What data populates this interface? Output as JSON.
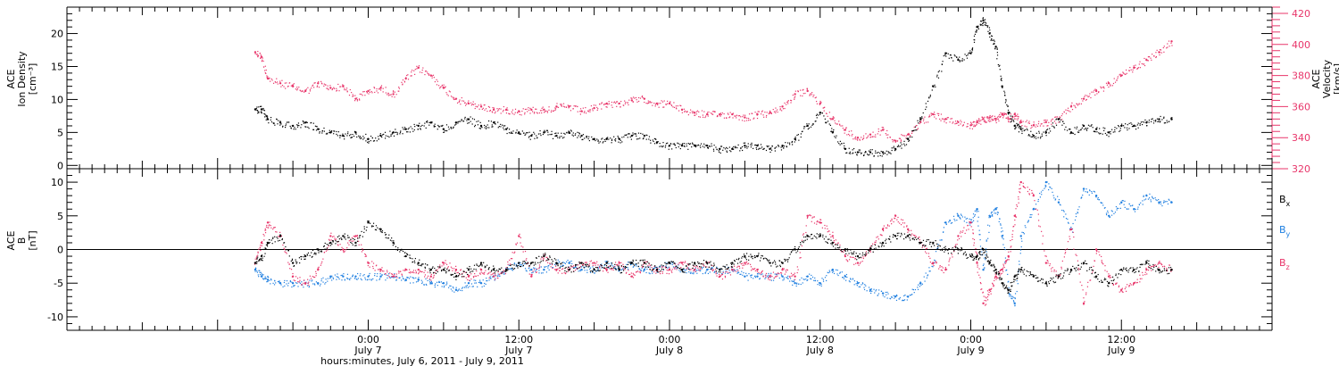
{
  "colors": {
    "black": "#000000",
    "pink": "#e8356a",
    "blue": "#1f7fe0"
  },
  "time": {
    "xlabel": "hours:minutes, July  6, 2011 - July  9, 2011",
    "hour_range": [
      0,
      96
    ],
    "major_ticks": [
      {
        "hour": 24,
        "top": "0:00",
        "bottom": "July 7"
      },
      {
        "hour": 36,
        "top": "12:00",
        "bottom": "July 7"
      },
      {
        "hour": 48,
        "top": "0:00",
        "bottom": "July 8"
      },
      {
        "hour": 60,
        "top": "12:00",
        "bottom": "July 8"
      },
      {
        "hour": 72,
        "top": "0:00",
        "bottom": "July 9"
      },
      {
        "hour": 84,
        "top": "12:00",
        "bottom": "July 9"
      }
    ]
  },
  "chart_data": [
    {
      "type": "scatter",
      "ylabel_left": [
        "ACE",
        "Ion Density",
        "[cm⁻³]"
      ],
      "ylabel_right": [
        "ACE",
        "Velocity",
        "[km/s]"
      ],
      "ylim_left": [
        -0.5,
        24
      ],
      "ylim_right": [
        320,
        424
      ],
      "yticks_left": [
        0,
        5,
        10,
        15,
        20
      ],
      "yticks_right": [
        320,
        340,
        360,
        380,
        400,
        420
      ],
      "series": [
        {
          "axis": "left",
          "color": "black",
          "x": [
            15,
            15.5,
            16,
            17,
            18,
            19,
            20,
            21,
            22,
            23,
            24,
            25,
            26,
            27,
            28,
            29,
            30,
            31,
            32,
            33,
            34,
            35,
            36,
            37,
            38,
            39,
            40,
            41,
            42,
            43,
            44,
            45,
            46,
            47,
            48,
            49,
            50,
            51,
            52,
            53,
            54,
            55,
            56,
            57,
            58,
            59,
            60,
            61,
            62,
            63,
            64,
            65,
            66,
            67,
            68,
            69,
            70,
            71,
            72,
            72.5,
            73,
            73.5,
            74,
            74.5,
            75,
            75.5,
            76,
            77,
            78,
            79,
            80,
            81,
            82,
            83,
            84,
            85,
            86,
            87,
            88
          ],
          "y": [
            8.5,
            8.5,
            7,
            6.5,
            6,
            6.5,
            5.5,
            5,
            4.5,
            5,
            4,
            4.5,
            5,
            5.5,
            6,
            6.5,
            5.5,
            6.5,
            7,
            6,
            6.5,
            5.5,
            5,
            4.5,
            5,
            4.5,
            5,
            4.5,
            4,
            4,
            4,
            4.5,
            4.5,
            3.5,
            3,
            3,
            3,
            3,
            2.5,
            2.5,
            3,
            3,
            2.5,
            3,
            4,
            6,
            8,
            5,
            2.5,
            2,
            2,
            2,
            2.5,
            4,
            7,
            12,
            17,
            16,
            17,
            21,
            22,
            20,
            18,
            12,
            8,
            6,
            5.5,
            4.5,
            5,
            7,
            5,
            6,
            5.5,
            5,
            6,
            6,
            6.5,
            7,
            7
          ]
        },
        {
          "axis": "right",
          "color": "pink",
          "x": [
            15,
            15.5,
            16,
            17,
            18,
            19,
            20,
            21,
            22,
            23,
            24,
            25,
            26,
            27,
            28,
            29,
            30,
            31,
            32,
            33,
            34,
            35,
            36,
            37,
            38,
            39,
            40,
            41,
            42,
            43,
            44,
            45,
            46,
            47,
            48,
            49,
            50,
            51,
            52,
            53,
            54,
            55,
            56,
            57,
            58,
            59,
            60,
            61,
            62,
            63,
            64,
            65,
            66,
            67,
            68,
            69,
            70,
            71,
            72,
            72.5,
            73,
            73.5,
            74,
            74.5,
            75,
            75.5,
            76,
            77,
            78,
            79,
            80,
            81,
            82,
            83,
            84,
            85,
            86,
            87,
            88
          ],
          "y": [
            395,
            392,
            378,
            375,
            373,
            370,
            375,
            372,
            373,
            365,
            370,
            372,
            368,
            378,
            385,
            380,
            372,
            365,
            362,
            360,
            358,
            358,
            357,
            358,
            358,
            360,
            360,
            357,
            359,
            362,
            362,
            364,
            365,
            362,
            362,
            358,
            356,
            355,
            355,
            355,
            353,
            355,
            356,
            360,
            368,
            370,
            362,
            352,
            345,
            340,
            342,
            345,
            338,
            342,
            350,
            355,
            352,
            350,
            348,
            350,
            352,
            353,
            352,
            355,
            352,
            355,
            350,
            348,
            350,
            352,
            360,
            365,
            370,
            375,
            380,
            385,
            390,
            395,
            402
          ]
        }
      ]
    },
    {
      "type": "scatter",
      "ylabel_left": [
        "ACE",
        "B",
        "[nT]"
      ],
      "ylim_left": [
        -12,
        12
      ],
      "yticks_left": [
        -10,
        -5,
        0,
        5,
        10
      ],
      "zero_line": true,
      "legend_position": "right",
      "series": [
        {
          "name_base": "B",
          "name_sub": "x",
          "color": "black",
          "x": [
            15,
            15.5,
            16,
            17,
            18,
            19,
            20,
            21,
            22,
            23,
            24,
            25,
            26,
            27,
            28,
            29,
            30,
            31,
            32,
            33,
            34,
            35,
            36,
            37,
            38,
            39,
            40,
            41,
            42,
            43,
            44,
            45,
            46,
            47,
            48,
            49,
            50,
            51,
            52,
            53,
            54,
            55,
            56,
            57,
            58,
            59,
            60,
            61,
            62,
            63,
            64,
            65,
            66,
            67,
            68,
            69,
            70,
            71,
            72,
            72.5,
            73,
            73.5,
            74,
            74.5,
            75,
            75.5,
            76,
            77,
            78,
            79,
            80,
            81,
            82,
            83,
            84,
            85,
            86,
            87,
            88
          ],
          "y": [
            -2,
            -1,
            1,
            2,
            -2,
            -1,
            0,
            1,
            2,
            1,
            4,
            3,
            1,
            -1,
            -2,
            -3,
            -3,
            -4,
            -3,
            -2,
            -3,
            -3,
            -2,
            -2,
            -1,
            -2,
            -3,
            -2,
            -3,
            -2,
            -3,
            -2,
            -2,
            -3,
            -2,
            -3,
            -2,
            -2,
            -3,
            -2,
            -1,
            -1,
            -2,
            -2,
            0,
            2,
            2,
            1,
            0,
            -1,
            0,
            1,
            2,
            2,
            1,
            1,
            0,
            0,
            -1,
            -1,
            0,
            -2,
            -3,
            -5,
            -6,
            -4,
            -3,
            -4,
            -5,
            -4,
            -3,
            -2,
            -4,
            -5,
            -3,
            -3,
            -2,
            -3,
            -3
          ]
        },
        {
          "name_base": "B",
          "name_sub": "y",
          "color": "blue",
          "x": [
            15,
            15.5,
            16,
            17,
            18,
            19,
            20,
            21,
            22,
            23,
            24,
            25,
            26,
            27,
            28,
            29,
            30,
            31,
            32,
            33,
            34,
            35,
            36,
            37,
            38,
            39,
            40,
            41,
            42,
            43,
            44,
            45,
            46,
            47,
            48,
            49,
            50,
            51,
            52,
            53,
            54,
            55,
            56,
            57,
            58,
            59,
            60,
            61,
            62,
            63,
            64,
            65,
            66,
            67,
            68,
            69,
            70,
            71,
            72,
            72.5,
            73,
            73.5,
            74,
            74.5,
            75,
            75.5,
            76,
            77,
            78,
            79,
            80,
            81,
            82,
            83,
            84,
            85,
            86,
            87,
            88
          ],
          "y": [
            -3,
            -4,
            -4.5,
            -5,
            -5,
            -5,
            -5,
            -4,
            -4,
            -4,
            -4,
            -4,
            -4,
            -4.5,
            -4.5,
            -5,
            -5,
            -6,
            -5,
            -5,
            -4,
            -3,
            -2,
            -3,
            -3,
            -2,
            -2,
            -3,
            -3,
            -2,
            -3,
            -2,
            -3,
            -3,
            -2,
            -3,
            -3,
            -3,
            -3,
            -3,
            -4,
            -4,
            -4,
            -4,
            -5,
            -4,
            -5,
            -3,
            -4,
            -5,
            -6,
            -6.5,
            -7,
            -7,
            -5,
            -2,
            4,
            5,
            4,
            6,
            -3,
            5,
            6,
            2,
            -6,
            -8,
            2,
            6,
            10,
            7,
            3,
            9,
            8,
            5,
            7,
            6,
            8,
            7,
            7
          ]
        },
        {
          "name_base": "B",
          "name_sub": "z",
          "color": "pink",
          "x": [
            15,
            15.5,
            16,
            17,
            18,
            19,
            20,
            21,
            22,
            23,
            24,
            25,
            26,
            27,
            28,
            29,
            30,
            31,
            32,
            33,
            34,
            35,
            36,
            37,
            38,
            39,
            40,
            41,
            42,
            43,
            44,
            45,
            46,
            47,
            48,
            49,
            50,
            51,
            52,
            53,
            54,
            55,
            56,
            57,
            58,
            59,
            60,
            61,
            62,
            63,
            64,
            65,
            66,
            67,
            68,
            69,
            70,
            71,
            72,
            72.5,
            73,
            73.5,
            74,
            74.5,
            75,
            75.5,
            76,
            77,
            78,
            79,
            80,
            81,
            82,
            83,
            84,
            85,
            86,
            87,
            88
          ],
          "y": [
            -2,
            1,
            4,
            2,
            -4,
            -5,
            -3,
            2,
            0,
            2,
            -2,
            -3,
            -4,
            -3,
            -3,
            -4,
            -2,
            -3,
            -4,
            -3,
            -4,
            -3,
            2,
            -4,
            -1,
            -3,
            -3,
            -2,
            -2,
            -3,
            -2,
            -4,
            -2,
            -3,
            -3,
            -2,
            -3,
            -2,
            -4,
            -3,
            -2,
            -3,
            -4,
            -3,
            -4,
            5,
            4,
            2,
            -1,
            -2,
            0,
            3,
            5,
            3,
            1,
            -2,
            -3,
            2,
            4,
            -2,
            -8,
            -6,
            -4,
            -3,
            -1,
            5,
            10,
            8,
            -2,
            -4,
            3,
            -8,
            0,
            -4,
            -6,
            -5,
            -3,
            -2,
            -3
          ]
        }
      ]
    }
  ]
}
